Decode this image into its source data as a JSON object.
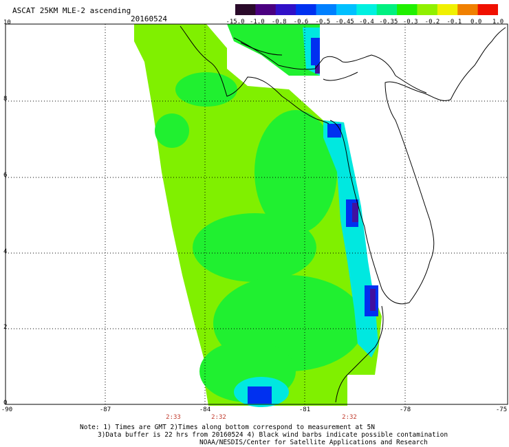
{
  "header": {
    "title": "ASCAT 25KM MLE-2 ascending",
    "date": "20160524"
  },
  "colorbar": {
    "labels": [
      "-15.0",
      "-1.0",
      "-0.8",
      "-0.6",
      "-0.5",
      "-0.45",
      "-0.4",
      "-0.35",
      "-0.3",
      "-0.2",
      "-0.1",
      "0.0",
      "1.0"
    ],
    "colors": [
      "#2a0a2a",
      "#4a0080",
      "#3010c8",
      "#0030f0",
      "#0080ff",
      "#00c0ff",
      "#00f0e0",
      "#00f080",
      "#20f000",
      "#90f000",
      "#f0f000",
      "#f08000",
      "#f01000"
    ]
  },
  "axes": {
    "y_ticks": [
      "10",
      "8",
      "6",
      "4",
      "2",
      "0"
    ],
    "x_ticks": [
      "-90",
      "-87",
      "-84",
      "-81",
      "-78",
      "-75"
    ],
    "grid_color": "#000000"
  },
  "times": [
    "2:33",
    "2:32",
    "2:32"
  ],
  "field": {
    "background_color": "#ffffff",
    "water_main": "#80f000",
    "water_green": "#20f030",
    "water_cyan": "#00e8e0",
    "water_blue": "#0030f0",
    "water_purple": "#4010a0"
  },
  "notes": {
    "line1": "Note: 1) Times are GMT 2)Times along bottom correspond to measurement at 5N",
    "line2": "3)Data buffer is 22 hrs from 20160524 4) Black wind barbs indicate possible contamination",
    "line3": "NOAA/NESDIS/Center for Satellite Applications and Research"
  }
}
